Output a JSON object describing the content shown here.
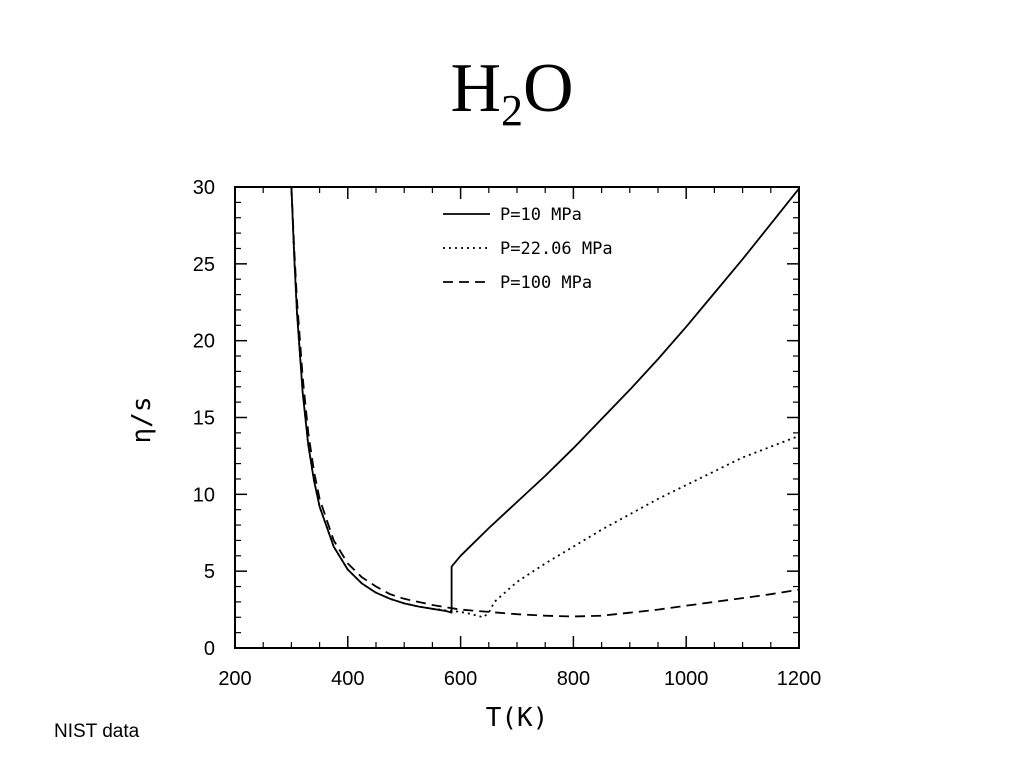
{
  "slide": {
    "title_main": "H",
    "title_sub": "2",
    "title_end": "O",
    "source_note": "NIST data"
  },
  "chart_data": {
    "type": "line",
    "xlabel": "T(K)",
    "ylabel": "η/s",
    "xlim": [
      200,
      1200
    ],
    "ylim": [
      0,
      30
    ],
    "xticks": [
      200,
      400,
      600,
      800,
      1000,
      1200
    ],
    "yticks": [
      0,
      5,
      10,
      15,
      20,
      25,
      30
    ],
    "grid": false,
    "legend_position": "top-right",
    "series": [
      {
        "name": "P=10 MPa",
        "style": "solid",
        "x": [
          300,
          305,
          310,
          320,
          330,
          340,
          350,
          375,
          400,
          425,
          450,
          475,
          500,
          525,
          550,
          575,
          584,
          584,
          600,
          650,
          700,
          750,
          800,
          850,
          900,
          950,
          1000,
          1050,
          1100,
          1150,
          1200
        ],
        "y": [
          30,
          25.5,
          21.8,
          16.6,
          13.2,
          10.9,
          9.2,
          6.6,
          5.1,
          4.2,
          3.6,
          3.2,
          2.9,
          2.7,
          2.55,
          2.4,
          2.3,
          5.3,
          6.0,
          7.8,
          9.5,
          11.2,
          13.0,
          14.9,
          16.8,
          18.8,
          20.9,
          23.1,
          25.3,
          27.6,
          29.9
        ]
      },
      {
        "name": "P=22.06 MPa",
        "style": "dotted",
        "x": [
          300,
          305,
          310,
          320,
          330,
          340,
          350,
          375,
          400,
          425,
          450,
          475,
          500,
          525,
          550,
          575,
          600,
          620,
          640,
          650,
          660,
          700,
          750,
          800,
          850,
          900,
          950,
          1000,
          1050,
          1100,
          1150,
          1200
        ],
        "y": [
          30,
          25.5,
          21.8,
          16.6,
          13.2,
          10.9,
          9.2,
          6.6,
          5.1,
          4.2,
          3.6,
          3.2,
          2.9,
          2.7,
          2.55,
          2.45,
          2.35,
          2.2,
          2.0,
          2.3,
          3.0,
          4.3,
          5.5,
          6.6,
          7.7,
          8.7,
          9.7,
          10.6,
          11.5,
          12.4,
          13.1,
          13.8
        ]
      },
      {
        "name": "P=100 MPa",
        "style": "dashed",
        "x": [
          300,
          305,
          310,
          320,
          330,
          340,
          350,
          375,
          400,
          425,
          450,
          475,
          500,
          525,
          550,
          575,
          600,
          650,
          700,
          750,
          800,
          850,
          900,
          950,
          1000,
          1050,
          1100,
          1150,
          1200
        ],
        "y": [
          30,
          26.0,
          22.6,
          17.6,
          14.0,
          11.5,
          9.7,
          7.0,
          5.5,
          4.6,
          4.0,
          3.5,
          3.2,
          3.0,
          2.8,
          2.65,
          2.5,
          2.35,
          2.2,
          2.1,
          2.05,
          2.1,
          2.3,
          2.5,
          2.75,
          3.0,
          3.25,
          3.5,
          3.8
        ]
      }
    ]
  }
}
